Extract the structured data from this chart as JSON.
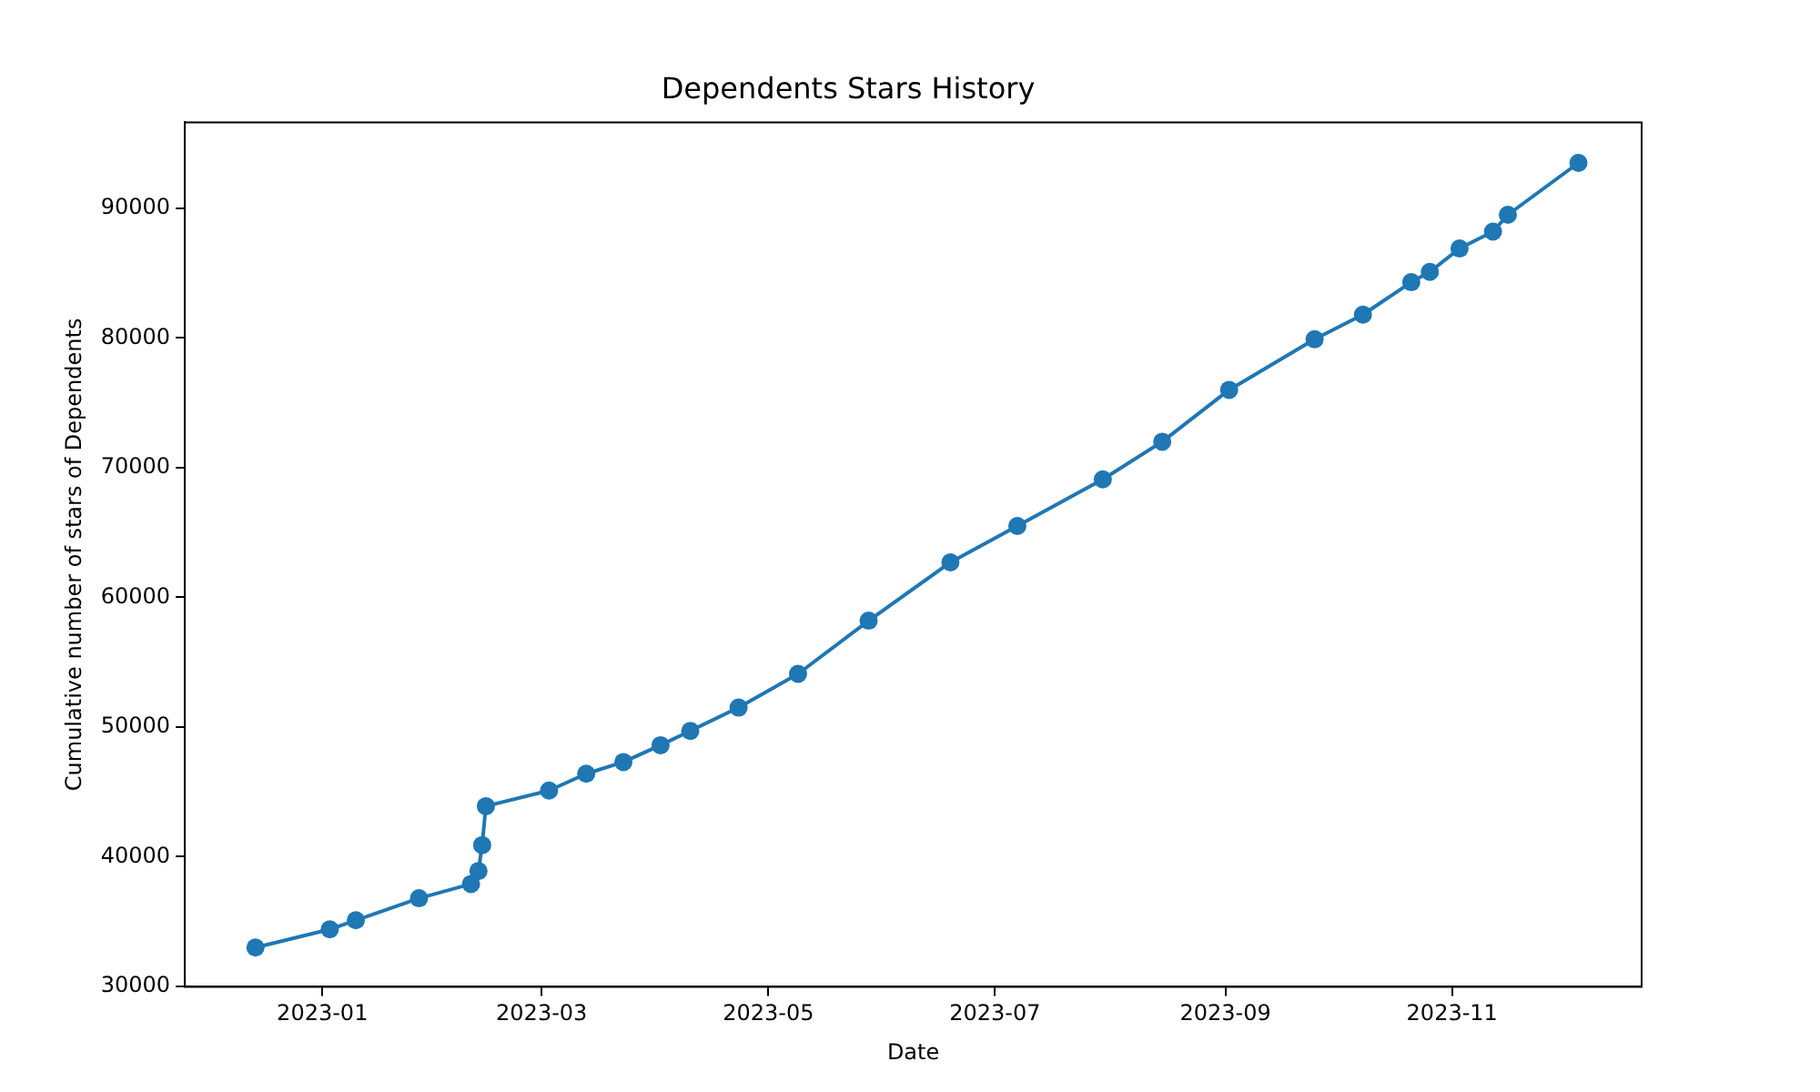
{
  "chart_data": {
    "type": "line",
    "title": "Dependents Stars History",
    "xlabel": "Date",
    "ylabel": "Cumulative number of stars of Dependents",
    "x": [
      "2022-12-14",
      "2023-01-03",
      "2023-01-10",
      "2023-01-27",
      "2023-02-10",
      "2023-02-12",
      "2023-02-13",
      "2023-02-14",
      "2023-03-03",
      "2023-03-13",
      "2023-03-23",
      "2023-04-02",
      "2023-04-10",
      "2023-04-23",
      "2023-05-09",
      "2023-05-28",
      "2023-06-19",
      "2023-07-07",
      "2023-07-30",
      "2023-08-15",
      "2023-09-02",
      "2023-09-25",
      "2023-10-08",
      "2023-10-21",
      "2023-10-26",
      "2023-11-03",
      "2023-11-12",
      "2023-11-16",
      "2023-12-05"
    ],
    "series": [
      {
        "color": "#1f77b4",
        "values": [
          33000,
          34400,
          35100,
          36800,
          37900,
          38900,
          40900,
          43900,
          45100,
          46400,
          47300,
          48600,
          49700,
          51500,
          54100,
          58200,
          62700,
          65500,
          69100,
          72000,
          76000,
          79900,
          81800,
          84300,
          85100,
          86900,
          88200,
          89500,
          93500
        ]
      }
    ],
    "xlim": [
      "2022-11-25",
      "2023-12-22"
    ],
    "xticks": [
      {
        "value": "2023-01-01",
        "label": "2023-01"
      },
      {
        "value": "2023-03-01",
        "label": "2023-03"
      },
      {
        "value": "2023-05-01",
        "label": "2023-05"
      },
      {
        "value": "2023-07-01",
        "label": "2023-07"
      },
      {
        "value": "2023-09-01",
        "label": "2023-09"
      },
      {
        "value": "2023-11-01",
        "label": "2023-11"
      }
    ],
    "ylim": [
      29970,
      96630
    ],
    "yticks": [
      30000,
      40000,
      50000,
      60000,
      70000,
      80000,
      90000
    ],
    "grid": false,
    "legend": false,
    "marker": "circle",
    "line_style": "solid"
  }
}
